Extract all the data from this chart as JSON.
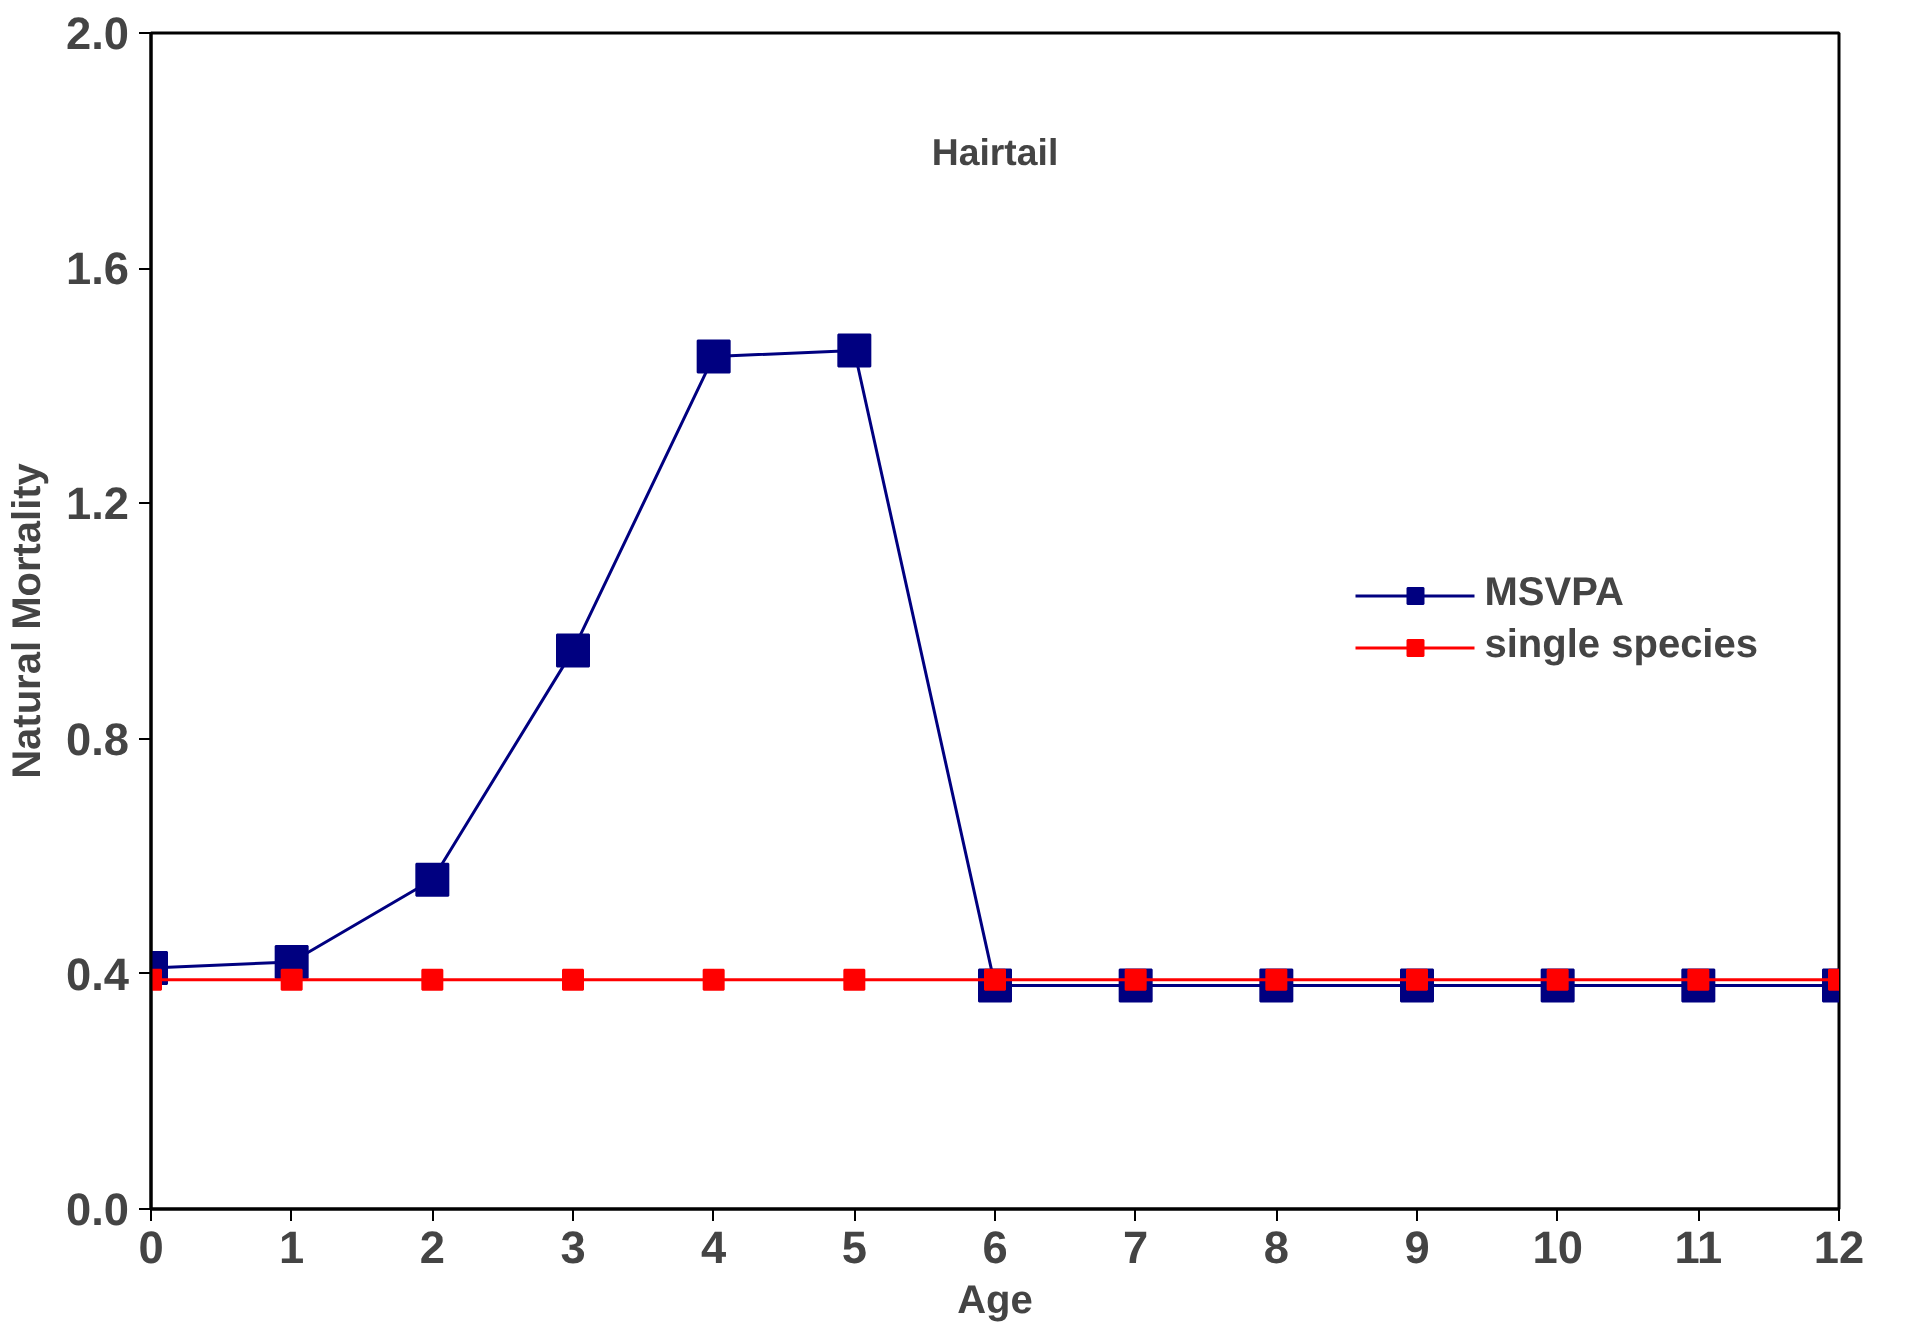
{
  "chart_data": {
    "type": "line",
    "title": "Hairtail",
    "xlabel": "Age",
    "ylabel": "Natural Mortality",
    "x": [
      0,
      1,
      2,
      3,
      4,
      5,
      6,
      7,
      8,
      9,
      10,
      11,
      12
    ],
    "xlim": [
      0,
      12
    ],
    "xticks": [
      0,
      1,
      2,
      3,
      4,
      5,
      6,
      7,
      8,
      9,
      10,
      11,
      12
    ],
    "ylim": [
      0,
      2
    ],
    "yticks": [
      {
        "value": 0,
        "label": "0.0"
      },
      {
        "value": 0.4,
        "label": "0.4"
      },
      {
        "value": 0.8,
        "label": "0.8"
      },
      {
        "value": 1.2,
        "label": "1.2"
      },
      {
        "value": 1.6,
        "label": "1.6"
      },
      {
        "value": 2,
        "label": "2.0"
      }
    ],
    "grid": false,
    "legend": "right",
    "marker": "square",
    "line_style": "solid",
    "series": [
      {
        "name": "MSVPA",
        "color": "#000080",
        "values": [
          0.41,
          0.42,
          0.56,
          0.95,
          1.45,
          1.46,
          0.38,
          0.38,
          0.38,
          0.38,
          0.38,
          0.38,
          0.38
        ]
      },
      {
        "name": "single species",
        "color": "#ff0000",
        "values": [
          0.39,
          0.39,
          0.39,
          0.39,
          0.39,
          0.39,
          0.39,
          0.39,
          0.39,
          0.39,
          0.39,
          0.39,
          0.39
        ]
      }
    ]
  }
}
